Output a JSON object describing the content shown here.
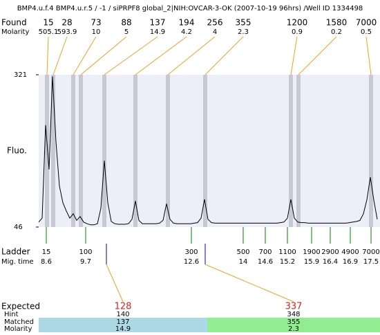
{
  "chart_data": {
    "type": "line",
    "title": "BMP4.u.f.4  BMP4.u.r.5 / -1 / siPRPF8 global_2|NIH:OVCAR-3-OK (2007-10-19 96hrs) /Well ID 1334498",
    "found_label": "Found",
    "molarity_label": "Molarity",
    "found": [
      "15",
      "28",
      "73",
      "88",
      "137",
      "194",
      "256",
      "355",
      "1200",
      "1580",
      "7000"
    ],
    "found_molarity": [
      "505.1",
      "593.9",
      "10",
      "5",
      "14.9",
      "4.2",
      "4",
      "2.3",
      "0.9",
      "0.2",
      "0.5"
    ],
    "ylabel": "Fluo.",
    "ylim": [
      46,
      321
    ],
    "yticks": [
      46,
      321
    ],
    "series": [
      {
        "color": "#000000",
        "values": [
          55,
          62,
          230,
          150,
          318,
          200,
          120,
          90,
          75,
          62,
          70,
          58,
          65,
          55,
          52,
          50,
          50,
          52,
          80,
          166,
          90,
          56,
          52,
          51,
          51,
          51,
          52,
          60,
          93,
          58,
          52,
          52,
          52,
          52,
          52,
          53,
          58,
          88,
          60,
          53,
          52,
          52,
          52,
          52,
          52,
          53,
          54,
          62,
          96,
          60,
          54,
          53,
          53,
          53,
          53,
          53,
          53,
          53,
          53,
          53,
          53,
          53,
          53,
          53,
          53,
          53,
          53,
          53,
          53,
          53,
          54,
          55,
          62,
          96,
          62,
          55,
          54,
          54,
          53,
          53,
          53,
          53,
          53,
          53,
          53,
          53,
          53,
          53,
          53,
          53,
          54,
          55,
          56,
          58,
          70,
          95,
          136,
          95,
          60
        ]
      }
    ],
    "ladder_label": "Ladder",
    "migtime_label": "Mig. time",
    "ladder": [
      "15",
      "100",
      "300",
      "500",
      "700",
      "1100",
      "1900",
      "2900",
      "4900",
      "7000"
    ],
    "mig_time": [
      "8.6",
      "9.7",
      "12.6",
      "14",
      "14.6",
      "15.2",
      "15.9",
      "16.4",
      "16.9",
      "17.5"
    ],
    "expected_label": "Expected",
    "hint_label": "Hint",
    "matched_label": "Matched",
    "expected_molarity_label": "Molarity",
    "expected": [
      {
        "expected": "128",
        "hint": "140",
        "matched": "137",
        "molarity": "14.9"
      },
      {
        "expected": "337",
        "hint": "348",
        "matched": "355",
        "molarity": "2.3"
      }
    ]
  }
}
